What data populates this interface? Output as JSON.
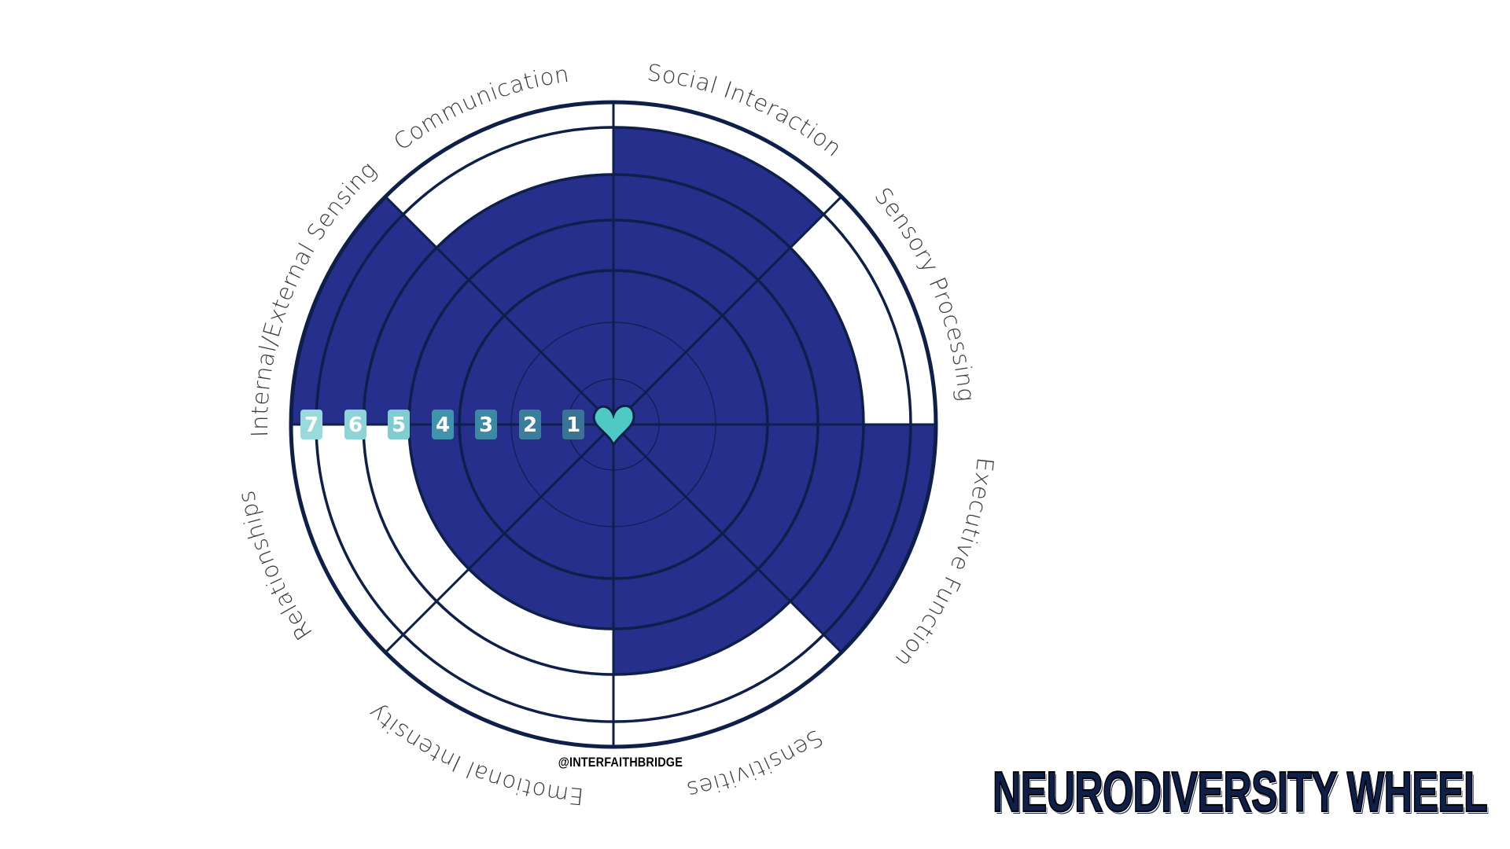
{
  "chart_data": {
    "type": "polar-area",
    "title": "NEURODIVERSITY WHEEL",
    "credit": "@INTERFAITHBRIDGE",
    "scale_min": 1,
    "scale_max": 7,
    "scale_labels": [
      "1",
      "2",
      "3",
      "4",
      "5",
      "6",
      "7"
    ],
    "categories": [
      "Social Interaction",
      "Sensory Processing",
      "Executive Function",
      "Sensitivities",
      "Emotional Intensity",
      "Relationships",
      "Internal/External Sensing",
      "Communication"
    ],
    "values": [
      6,
      5,
      7,
      5,
      4,
      4,
      7,
      5
    ],
    "colors": {
      "fill": "#262f8c",
      "ring": "#0e1f4a",
      "heart": "#4ec9c4"
    },
    "level_badge_colors": [
      "#3a7394",
      "#3b7d9c",
      "#3d88a3",
      "#3f93ab",
      "#7fccd1",
      "#8dd3d7",
      "#9ad9dc"
    ],
    "center_icon": "heart-icon"
  }
}
